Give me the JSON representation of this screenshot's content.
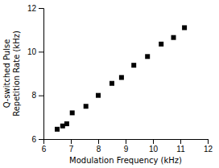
{
  "chart_data": {
    "type": "scatter",
    "x": [
      6.5,
      6.7,
      6.85,
      7.05,
      7.55,
      8.0,
      8.5,
      8.85,
      9.3,
      9.8,
      10.3,
      10.75,
      11.15
    ],
    "y": [
      6.45,
      6.6,
      6.7,
      7.2,
      7.5,
      8.0,
      8.55,
      8.82,
      9.38,
      9.78,
      10.35,
      10.65,
      11.1
    ],
    "xlabel": "Modulation Frequency (kHz)",
    "ylabel": "Q-switched Pulse\nRepetition Rate (kHz)",
    "xlim": [
      6,
      12
    ],
    "ylim": [
      6,
      12
    ],
    "xticks": [
      6,
      7,
      8,
      9,
      10,
      11,
      12
    ],
    "yticks": [
      6,
      8,
      10,
      12
    ],
    "marker": "square",
    "color": "black",
    "grid": false
  }
}
